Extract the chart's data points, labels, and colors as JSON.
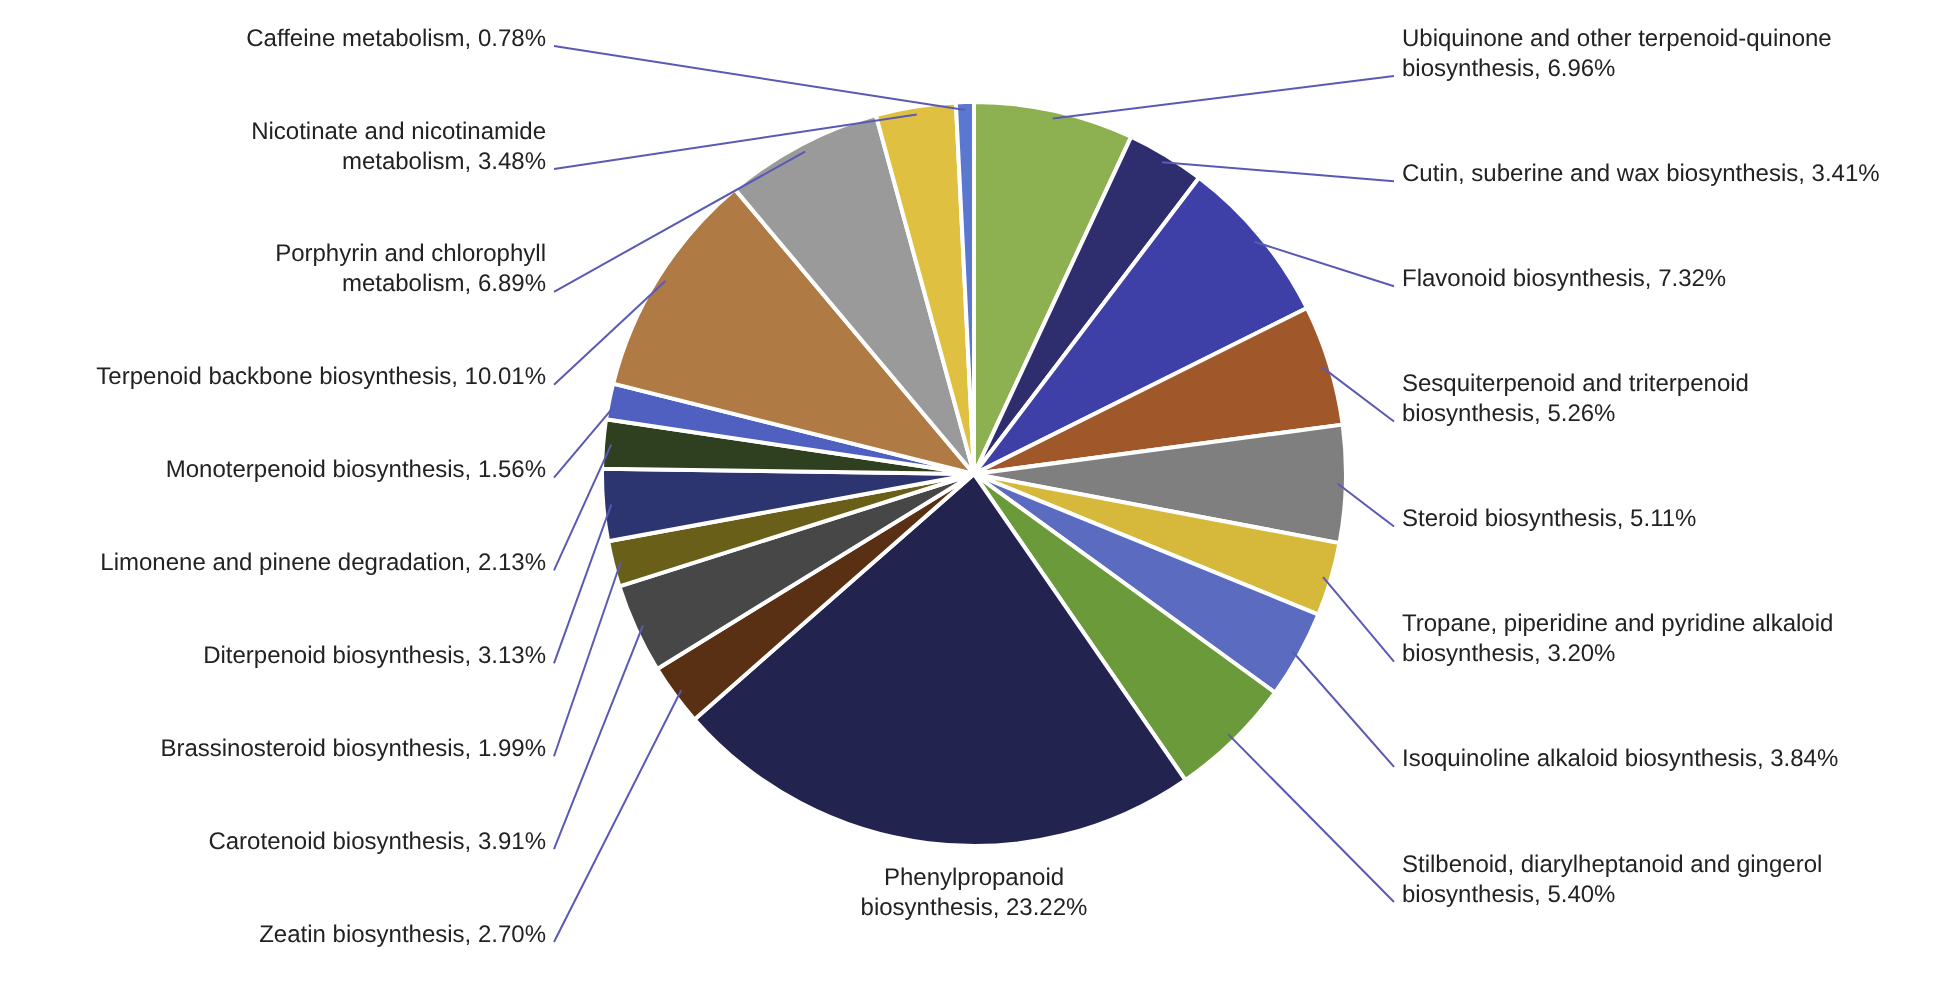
{
  "chart_data": {
    "type": "pie",
    "categories": [
      "Ubiquinone and other terpenoid-quinone biosynthesis",
      "Cutin, suberine and wax biosynthesis",
      "Flavonoid biosynthesis",
      "Sesquiterpenoid and triterpenoid biosynthesis",
      "Steroid biosynthesis",
      "Tropane, piperidine and pyridine alkaloid biosynthesis",
      "Isoquinoline alkaloid biosynthesis",
      "Stilbenoid, diarylheptanoid and gingerol biosynthesis",
      "Phenylpropanoid biosynthesis",
      "Zeatin biosynthesis",
      "Carotenoid biosynthesis",
      "Brassinosteroid biosynthesis",
      "Diterpenoid biosynthesis",
      "Limonene and pinene degradation",
      "Monoterpenoid biosynthesis",
      "Terpenoid backbone biosynthesis",
      "Porphyrin and chlorophyll metabolism",
      "Nicotinate and nicotinamide metabolism",
      "Caffeine metabolism"
    ],
    "values": [
      6.96,
      3.41,
      7.32,
      5.26,
      5.11,
      3.2,
      3.84,
      5.4,
      23.22,
      2.7,
      3.91,
      1.99,
      3.13,
      2.13,
      1.56,
      10.01,
      6.89,
      3.48,
      0.78
    ],
    "value_labels": [
      "6.96%",
      "3.41%",
      "7.32%",
      "5.26%",
      "5.11%",
      "3.20%",
      "3.84%",
      "5.40%",
      "23.22%",
      "2.70%",
      "3.91%",
      "1.99%",
      "3.13%",
      "2.13%",
      "1.56%",
      "10.01%",
      "6.89%",
      "3.48%",
      "0.78%"
    ],
    "colors": [
      "#8db150",
      "#2e2e6e",
      "#3f3fa8",
      "#a0572a",
      "#7f7f7f",
      "#d6b83a",
      "#5a6bc0",
      "#6a9a3a",
      "#232350",
      "#5a3015",
      "#474747",
      "#6a5f18",
      "#2d3570",
      "#2f4020",
      "#5060c0",
      "#b07a45",
      "#9a9a9a",
      "#e0c040",
      "#5a78d0"
    ],
    "legend": false
  }
}
